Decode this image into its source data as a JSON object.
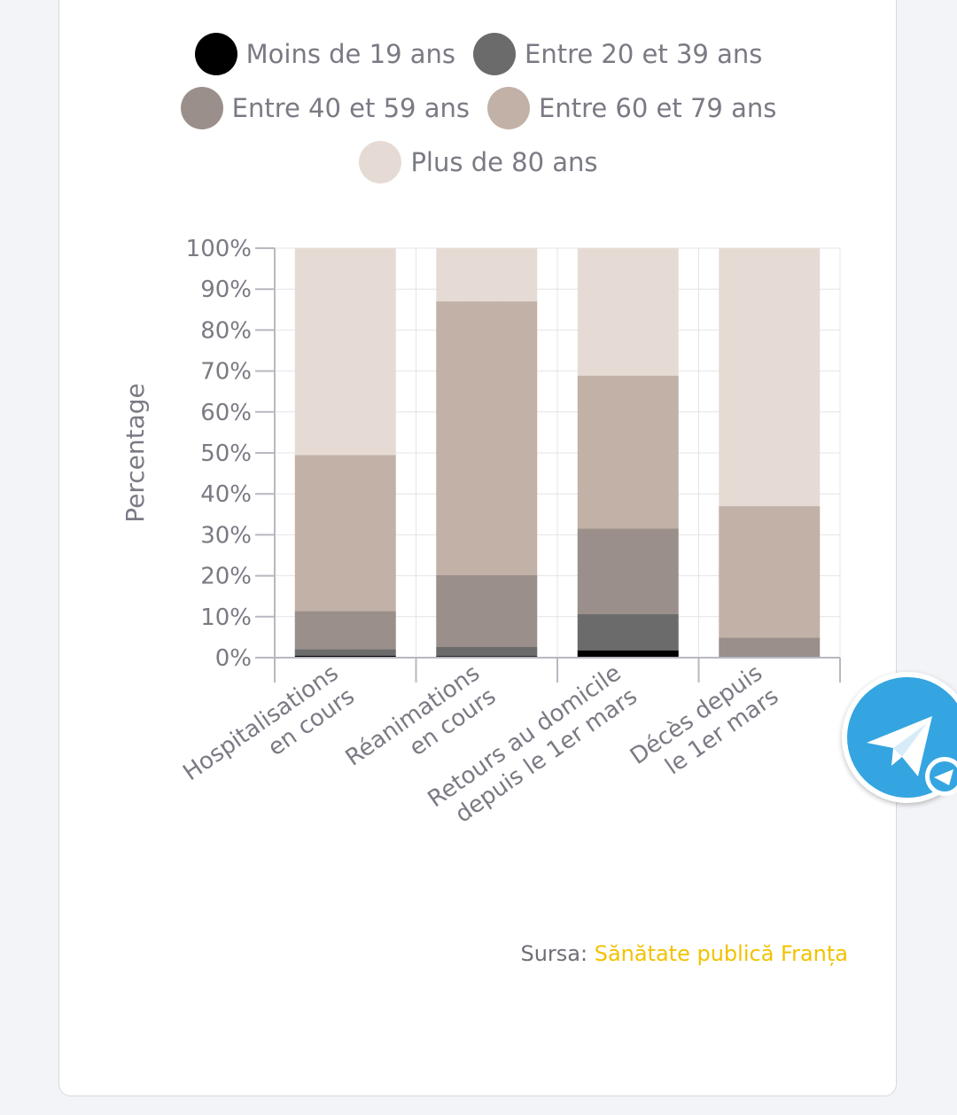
{
  "chart_data": {
    "type": "bar",
    "stacked": true,
    "categories": [
      [
        "Hospitalisations",
        "en cours"
      ],
      [
        "Réanimations",
        "en cours"
      ],
      [
        "Retours au domicile",
        "depuis le 1er mars"
      ],
      [
        "Décès depuis",
        "le 1er mars"
      ]
    ],
    "series": [
      {
        "name": "Moins de 19 ans",
        "color": "#000000",
        "values": [
          0.5,
          0.4,
          1.8,
          0.0
        ]
      },
      {
        "name": "Entre 20 et 39 ans",
        "color": "#6b6b6b",
        "values": [
          1.6,
          2.2,
          8.8,
          0.3
        ]
      },
      {
        "name": "Entre 40 et 59 ans",
        "color": "#9a8f8a",
        "values": [
          9.3,
          17.6,
          20.9,
          4.6
        ]
      },
      {
        "name": "Entre 60 et 79 ans",
        "color": "#c2b1a7",
        "values": [
          38.1,
          66.8,
          37.4,
          32.1
        ]
      },
      {
        "name": "Plus de 80 ans",
        "color": "#e6dbd4",
        "values": [
          50.5,
          13.0,
          31.1,
          63.0
        ]
      }
    ],
    "ylabel": "Percentage",
    "xlabel": "",
    "ylim": [
      0,
      100
    ],
    "yticks": [
      "0%",
      "10%",
      "20%",
      "30%",
      "40%",
      "50%",
      "60%",
      "70%",
      "80%",
      "90%",
      "100%"
    ],
    "grid": true,
    "legend_position": "top"
  },
  "source": {
    "prefix": "Sursa: ",
    "link_text": "Sănătate publică Franța"
  },
  "share_button": {
    "icon": "telegram-icon"
  }
}
